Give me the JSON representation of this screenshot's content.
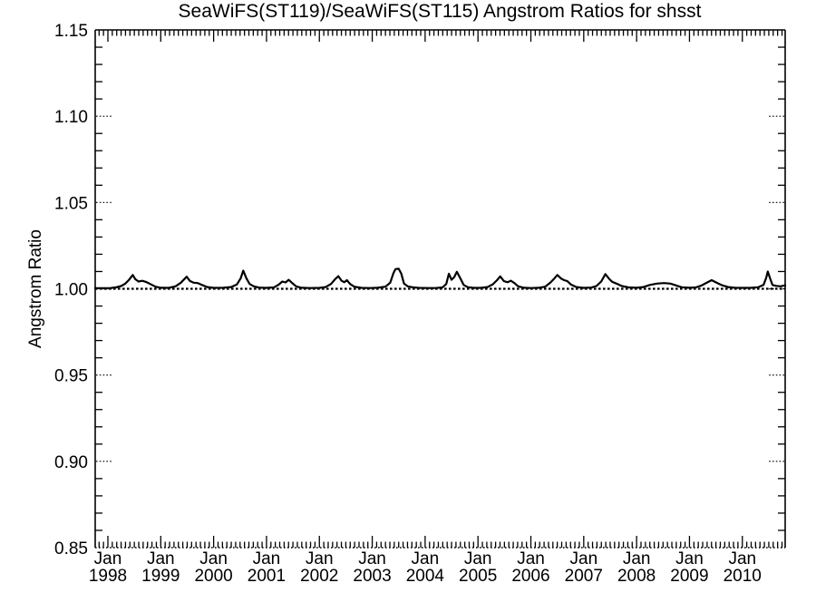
{
  "figure": {
    "background_color": "#ffffff",
    "foreground_color": "#000000"
  },
  "chart_data": {
    "type": "line",
    "title": "SeaWiFS(ST119)/SeaWiFS(ST115)  Angstrom Ratios for shsst",
    "xlabel": "",
    "ylabel": "Angstrom Ratio",
    "xlim": [
      1997.76,
      2010.81
    ],
    "ylim": [
      0.85,
      1.15
    ],
    "y_major_ticks": [
      0.85,
      0.9,
      0.95,
      1.0,
      1.05,
      1.1,
      1.15
    ],
    "y_minor_step": 0.01,
    "x_major_ticks_years": [
      1998,
      1999,
      2000,
      2001,
      2002,
      2003,
      2004,
      2005,
      2006,
      2007,
      2008,
      2009,
      2010
    ],
    "x_tick_label_month": "Jan",
    "x_minor_step_months": 1,
    "legend": "none",
    "grid": "dotted stubs at y major ticks near left and right axes",
    "reference_line": {
      "y": 1.0,
      "linestyle": "dashed"
    },
    "series": [
      {
        "name": "SeaWiFS(ST119)/SeaWiFS(ST115) Angstrom ratio",
        "color": "#000000",
        "points": [
          [
            1997.76,
            1.0003
          ],
          [
            1997.9,
            1.0003
          ],
          [
            1998.05,
            1.0004
          ],
          [
            1998.15,
            1.0008
          ],
          [
            1998.25,
            1.0016
          ],
          [
            1998.33,
            1.003
          ],
          [
            1998.4,
            1.0052
          ],
          [
            1998.47,
            1.008
          ],
          [
            1998.52,
            1.0055
          ],
          [
            1998.58,
            1.0042
          ],
          [
            1998.65,
            1.0046
          ],
          [
            1998.72,
            1.004
          ],
          [
            1998.8,
            1.0028
          ],
          [
            1998.9,
            1.0012
          ],
          [
            1999.0,
            1.0006
          ],
          [
            1999.15,
            1.0005
          ],
          [
            1999.28,
            1.0014
          ],
          [
            1999.38,
            1.0035
          ],
          [
            1999.49,
            1.007
          ],
          [
            1999.55,
            1.0045
          ],
          [
            1999.62,
            1.0035
          ],
          [
            1999.7,
            1.0033
          ],
          [
            1999.78,
            1.0022
          ],
          [
            1999.88,
            1.001
          ],
          [
            2000.0,
            1.0005
          ],
          [
            2000.18,
            1.0006
          ],
          [
            2000.33,
            1.001
          ],
          [
            2000.44,
            1.0025
          ],
          [
            2000.51,
            1.006
          ],
          [
            2000.56,
            1.0105
          ],
          [
            2000.62,
            1.006
          ],
          [
            2000.68,
            1.0028
          ],
          [
            2000.76,
            1.0014
          ],
          [
            2000.86,
            1.0007
          ],
          [
            2001.0,
            1.0005
          ],
          [
            2001.14,
            1.0008
          ],
          [
            2001.23,
            1.0024
          ],
          [
            2001.3,
            1.0042
          ],
          [
            2001.36,
            1.0037
          ],
          [
            2001.42,
            1.0052
          ],
          [
            2001.49,
            1.0032
          ],
          [
            2001.56,
            1.0014
          ],
          [
            2001.66,
            1.0006
          ],
          [
            2001.82,
            1.0004
          ],
          [
            2002.0,
            1.0005
          ],
          [
            2002.12,
            1.001
          ],
          [
            2002.22,
            1.0028
          ],
          [
            2002.3,
            1.0056
          ],
          [
            2002.36,
            1.0073
          ],
          [
            2002.42,
            1.0047
          ],
          [
            2002.47,
            1.0038
          ],
          [
            2002.52,
            1.005
          ],
          [
            2002.58,
            1.0028
          ],
          [
            2002.66,
            1.0012
          ],
          [
            2002.8,
            1.0005
          ],
          [
            2002.95,
            1.0004
          ],
          [
            2003.1,
            1.0006
          ],
          [
            2003.25,
            1.0012
          ],
          [
            2003.34,
            1.0035
          ],
          [
            2003.4,
            1.009
          ],
          [
            2003.44,
            1.0114
          ],
          [
            2003.5,
            1.0116
          ],
          [
            2003.55,
            1.0088
          ],
          [
            2003.6,
            1.003
          ],
          [
            2003.67,
            1.0014
          ],
          [
            2003.76,
            1.0009
          ],
          [
            2003.88,
            1.0005
          ],
          [
            2004.05,
            1.0004
          ],
          [
            2004.2,
            1.0004
          ],
          [
            2004.33,
            1.0008
          ],
          [
            2004.4,
            1.0028
          ],
          [
            2004.45,
            1.0087
          ],
          [
            2004.5,
            1.0052
          ],
          [
            2004.55,
            1.0068
          ],
          [
            2004.6,
            1.0098
          ],
          [
            2004.67,
            1.0058
          ],
          [
            2004.73,
            1.0022
          ],
          [
            2004.81,
            1.0009
          ],
          [
            2004.92,
            1.0005
          ],
          [
            2005.05,
            1.0005
          ],
          [
            2005.18,
            1.001
          ],
          [
            2005.28,
            1.0026
          ],
          [
            2005.36,
            1.005
          ],
          [
            2005.42,
            1.0072
          ],
          [
            2005.49,
            1.0044
          ],
          [
            2005.56,
            1.0038
          ],
          [
            2005.62,
            1.0047
          ],
          [
            2005.69,
            1.0033
          ],
          [
            2005.76,
            1.0014
          ],
          [
            2005.87,
            1.0006
          ],
          [
            2006.0,
            1.0004
          ],
          [
            2006.15,
            1.0006
          ],
          [
            2006.27,
            1.0012
          ],
          [
            2006.37,
            1.0036
          ],
          [
            2006.45,
            1.0062
          ],
          [
            2006.5,
            1.008
          ],
          [
            2006.57,
            1.006
          ],
          [
            2006.63,
            1.005
          ],
          [
            2006.69,
            1.0044
          ],
          [
            2006.76,
            1.0024
          ],
          [
            2006.86,
            1.001
          ],
          [
            2007.0,
            1.0005
          ],
          [
            2007.14,
            1.0007
          ],
          [
            2007.24,
            1.0016
          ],
          [
            2007.33,
            1.0042
          ],
          [
            2007.41,
            1.0085
          ],
          [
            2007.48,
            1.0058
          ],
          [
            2007.54,
            1.004
          ],
          [
            2007.62,
            1.003
          ],
          [
            2007.72,
            1.0016
          ],
          [
            2007.85,
            1.0008
          ],
          [
            2008.0,
            1.0006
          ],
          [
            2008.13,
            1.001
          ],
          [
            2008.25,
            1.0022
          ],
          [
            2008.38,
            1.003
          ],
          [
            2008.52,
            1.0033
          ],
          [
            2008.64,
            1.003
          ],
          [
            2008.74,
            1.002
          ],
          [
            2008.85,
            1.0009
          ],
          [
            2009.0,
            1.0006
          ],
          [
            2009.12,
            1.0008
          ],
          [
            2009.22,
            1.0018
          ],
          [
            2009.32,
            1.0034
          ],
          [
            2009.42,
            1.005
          ],
          [
            2009.52,
            1.0034
          ],
          [
            2009.62,
            1.002
          ],
          [
            2009.73,
            1.001
          ],
          [
            2009.86,
            1.0006
          ],
          [
            2010.0,
            1.0005
          ],
          [
            2010.15,
            1.0005
          ],
          [
            2010.3,
            1.0009
          ],
          [
            2010.4,
            1.0022
          ],
          [
            2010.45,
            1.0062
          ],
          [
            2010.48,
            1.01
          ],
          [
            2010.53,
            1.0055
          ],
          [
            2010.57,
            1.0022
          ],
          [
            2010.64,
            1.0017
          ],
          [
            2010.72,
            1.0014
          ],
          [
            2010.81,
            1.002
          ]
        ]
      }
    ]
  }
}
